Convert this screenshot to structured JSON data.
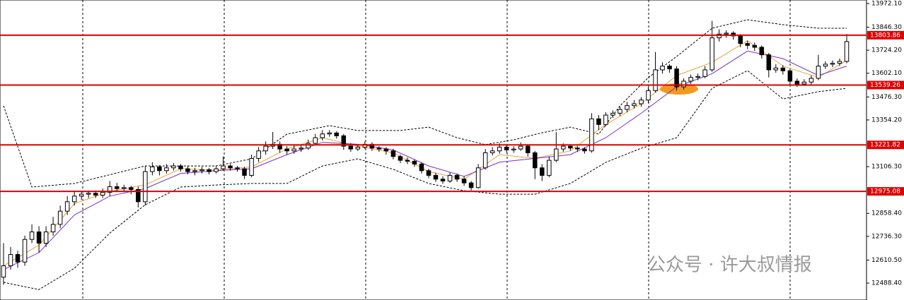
{
  "chart_data": {
    "type": "candlestick",
    "ylim": [
      12398.5,
      13990.8
    ],
    "yticks": [
      {
        "value": 13972.1,
        "label": "13972.10"
      },
      {
        "value": 13846.3,
        "label": "13846.30"
      },
      {
        "value": 13724.2,
        "label": "13724.20"
      },
      {
        "value": 13602.1,
        "label": "13602.10"
      },
      {
        "value": 13476.3,
        "label": "13476.30"
      },
      {
        "value": 13354.2,
        "label": "13354.20"
      },
      {
        "value": 13106.3,
        "label": "13106.30"
      },
      {
        "value": 12858.4,
        "label": "12858.40"
      },
      {
        "value": 12736.3,
        "label": "12736.30"
      },
      {
        "value": 12610.5,
        "label": "12610.50"
      },
      {
        "value": 12488.4,
        "label": "12488.40"
      }
    ],
    "levels": [
      13803.86,
      13539.26,
      13221.82,
      12975.08
    ],
    "level_color": "#e00000",
    "up_color": "#ffffff",
    "down_color": "#000000",
    "grid": true,
    "watermark": "公众号 · 许大叔情报",
    "candles": [
      [
        12520,
        12700,
        12480,
        12580
      ],
      [
        12580,
        12680,
        12560,
        12640
      ],
      [
        12640,
        12660,
        12570,
        12600
      ],
      [
        12600,
        12740,
        12580,
        12720
      ],
      [
        12720,
        12800,
        12700,
        12760
      ],
      [
        12760,
        12790,
        12650,
        12700
      ],
      [
        12700,
        12790,
        12680,
        12760
      ],
      [
        12760,
        12840,
        12740,
        12800
      ],
      [
        12800,
        12900,
        12780,
        12870
      ],
      [
        12870,
        12950,
        12850,
        12920
      ],
      [
        12920,
        12980,
        12900,
        12950
      ],
      [
        12950,
        12975,
        12930,
        12960
      ],
      [
        12960,
        12980,
        12940,
        12965
      ],
      [
        12965,
        12980,
        12940,
        12955
      ],
      [
        12955,
        12990,
        12940,
        12970
      ],
      [
        12970,
        13030,
        12950,
        13000
      ],
      [
        13000,
        13020,
        12975,
        12990
      ],
      [
        12990,
        13010,
        12975,
        12995
      ],
      [
        12995,
        13005,
        12960,
        12985
      ],
      [
        12985,
        13000,
        12890,
        12920
      ],
      [
        12920,
        13110,
        12900,
        13080
      ],
      [
        13080,
        13130,
        13060,
        13105
      ],
      [
        13105,
        13115,
        13060,
        13085
      ],
      [
        13085,
        13120,
        13070,
        13100
      ],
      [
        13100,
        13125,
        13085,
        13110
      ],
      [
        13110,
        13120,
        13080,
        13095
      ],
      [
        13095,
        13110,
        13065,
        13080
      ],
      [
        13080,
        13100,
        13060,
        13085
      ],
      [
        13085,
        13105,
        13070,
        13090
      ],
      [
        13090,
        13100,
        13065,
        13080
      ],
      [
        13080,
        13110,
        13070,
        13095
      ],
      [
        13095,
        13160,
        13085,
        13110
      ],
      [
        13110,
        13120,
        13085,
        13100
      ],
      [
        13100,
        13110,
        13080,
        13095
      ],
      [
        13095,
        13105,
        13040,
        13060
      ],
      [
        13060,
        13170,
        13050,
        13150
      ],
      [
        13150,
        13210,
        13130,
        13190
      ],
      [
        13190,
        13240,
        13170,
        13215
      ],
      [
        13215,
        13290,
        13200,
        13225
      ],
      [
        13225,
        13240,
        13180,
        13200
      ],
      [
        13200,
        13215,
        13170,
        13190
      ],
      [
        13190,
        13220,
        13175,
        13200
      ],
      [
        13200,
        13225,
        13185,
        13205
      ],
      [
        13205,
        13250,
        13195,
        13230
      ],
      [
        13230,
        13280,
        13220,
        13260
      ],
      [
        13260,
        13300,
        13245,
        13280
      ],
      [
        13280,
        13300,
        13265,
        13285
      ],
      [
        13285,
        13295,
        13255,
        13270
      ],
      [
        13270,
        13280,
        13195,
        13215
      ],
      [
        13215,
        13230,
        13185,
        13200
      ],
      [
        13200,
        13225,
        13190,
        13210
      ],
      [
        13210,
        13240,
        13200,
        13225
      ],
      [
        13225,
        13235,
        13190,
        13205
      ],
      [
        13205,
        13215,
        13185,
        13200
      ],
      [
        13200,
        13210,
        13170,
        13190
      ],
      [
        13190,
        13200,
        13145,
        13160
      ],
      [
        13160,
        13170,
        13125,
        13140
      ],
      [
        13140,
        13155,
        13120,
        13135
      ],
      [
        13135,
        13145,
        13105,
        13120
      ],
      [
        13120,
        13130,
        13070,
        13085
      ],
      [
        13085,
        13095,
        13045,
        13060
      ],
      [
        13060,
        13075,
        13025,
        13040
      ],
      [
        13040,
        13055,
        13015,
        13030
      ],
      [
        13030,
        13075,
        13020,
        13060
      ],
      [
        13060,
        13070,
        13025,
        13040
      ],
      [
        13040,
        13055,
        13005,
        13020
      ],
      [
        13020,
        13030,
        12980,
        12995
      ],
      [
        12995,
        13120,
        12990,
        13100
      ],
      [
        13100,
        13200,
        13090,
        13180
      ],
      [
        13180,
        13210,
        13165,
        13190
      ],
      [
        13190,
        13230,
        13175,
        13210
      ],
      [
        13210,
        13225,
        13180,
        13195
      ],
      [
        13195,
        13215,
        13180,
        13200
      ],
      [
        13200,
        13235,
        13190,
        13215
      ],
      [
        13215,
        13225,
        13160,
        13180
      ],
      [
        13180,
        13190,
        13040,
        13100
      ],
      [
        13100,
        13120,
        13030,
        13060
      ],
      [
        13060,
        13160,
        13050,
        13140
      ],
      [
        13140,
        13290,
        13130,
        13200
      ],
      [
        13200,
        13230,
        13185,
        13215
      ],
      [
        13215,
        13225,
        13190,
        13205
      ],
      [
        13205,
        13215,
        13185,
        13200
      ],
      [
        13200,
        13210,
        13175,
        13190
      ],
      [
        13190,
        13390,
        13180,
        13360
      ],
      [
        13360,
        13380,
        13300,
        13330
      ],
      [
        13330,
        13395,
        13320,
        13380
      ],
      [
        13380,
        13405,
        13365,
        13390
      ],
      [
        13390,
        13425,
        13375,
        13410
      ],
      [
        13410,
        13450,
        13395,
        13430
      ],
      [
        13430,
        13460,
        13415,
        13440
      ],
      [
        13440,
        13475,
        13425,
        13460
      ],
      [
        13460,
        13530,
        13445,
        13510
      ],
      [
        13510,
        13715,
        13500,
        13620
      ],
      [
        13620,
        13660,
        13600,
        13640
      ],
      [
        13640,
        13650,
        13605,
        13625
      ],
      [
        13625,
        13640,
        13510,
        13530
      ],
      [
        13530,
        13575,
        13515,
        13560
      ],
      [
        13560,
        13595,
        13545,
        13580
      ],
      [
        13580,
        13600,
        13565,
        13585
      ],
      [
        13585,
        13640,
        13575,
        13620
      ],
      [
        13620,
        13880,
        13610,
        13790
      ],
      [
        13790,
        13835,
        13770,
        13810
      ],
      [
        13810,
        13830,
        13790,
        13815
      ],
      [
        13815,
        13825,
        13780,
        13800
      ],
      [
        13800,
        13810,
        13740,
        13760
      ],
      [
        13760,
        13775,
        13730,
        13750
      ],
      [
        13750,
        13765,
        13720,
        13740
      ],
      [
        13740,
        13750,
        13680,
        13700
      ],
      [
        13700,
        13710,
        13580,
        13620
      ],
      [
        13620,
        13650,
        13605,
        13630
      ],
      [
        13630,
        13645,
        13595,
        13615
      ],
      [
        13615,
        13625,
        13540,
        13560
      ],
      [
        13560,
        13575,
        13530,
        13545
      ],
      [
        13545,
        13570,
        13535,
        13555
      ],
      [
        13555,
        13590,
        13540,
        13575
      ],
      [
        13575,
        13700,
        13565,
        13640
      ],
      [
        13640,
        13665,
        13625,
        13650
      ],
      [
        13650,
        13670,
        13635,
        13655
      ],
      [
        13655,
        13680,
        13640,
        13665
      ],
      [
        13665,
        13810,
        13655,
        13770
      ]
    ],
    "overlays": [
      {
        "color": "#000000",
        "dashed": true,
        "x": [
          0,
          4,
          10,
          20,
          30,
          35,
          40,
          46,
          50,
          56,
          60,
          64,
          68,
          72,
          76,
          80,
          84,
          87,
          91,
          95,
          100,
          105,
          110,
          115,
          119
        ],
        "values": [
          13429,
          12998,
          13017,
          13110,
          13110,
          13148,
          13279,
          13324,
          13298,
          13298,
          13316,
          13260,
          13223,
          13249,
          13286,
          13316,
          13279,
          13429,
          13579,
          13691,
          13841,
          13886,
          13860,
          13841,
          13841
        ]
      },
      {
        "color": "#000000",
        "dashed": true,
        "x": [
          0,
          5,
          10,
          15,
          20,
          25,
          30,
          35,
          40,
          45,
          50,
          55,
          60,
          65,
          70,
          75,
          80,
          85,
          90,
          95,
          100,
          105,
          110,
          115,
          119
        ],
        "values": [
          12492,
          12454,
          12567,
          12754,
          12904,
          12998,
          13009,
          13017,
          13017,
          13110,
          13148,
          13092,
          13017,
          12979,
          12960,
          12960,
          13017,
          13129,
          13204,
          13260,
          13522,
          13616,
          13466,
          13504,
          13522
        ]
      },
      {
        "color": "#e8a33a",
        "dashed": false,
        "x": [
          0,
          5,
          10,
          15,
          20,
          25,
          30,
          35,
          40,
          45,
          50,
          55,
          60,
          65,
          70,
          75,
          80,
          85,
          90,
          95,
          100,
          105,
          110,
          115,
          119
        ],
        "values": [
          12580,
          12690,
          12910,
          12975,
          13010,
          13095,
          13088,
          13105,
          13200,
          13260,
          13215,
          13180,
          13080,
          13040,
          13170,
          13150,
          13190,
          13330,
          13440,
          13590,
          13660,
          13775,
          13640,
          13580,
          13670
        ]
      },
      {
        "color": "#7b2fbe",
        "dashed": false,
        "x": [
          0,
          5,
          10,
          15,
          20,
          25,
          30,
          35,
          40,
          45,
          50,
          55,
          60,
          65,
          70,
          75,
          80,
          85,
          90,
          95,
          100,
          105,
          110,
          115,
          119
        ],
        "values": [
          12560,
          12650,
          12850,
          12950,
          12990,
          13070,
          13085,
          13095,
          13170,
          13235,
          13225,
          13195,
          13110,
          13055,
          13130,
          13150,
          13170,
          13260,
          13390,
          13530,
          13600,
          13720,
          13680,
          13590,
          13640
        ]
      }
    ]
  }
}
